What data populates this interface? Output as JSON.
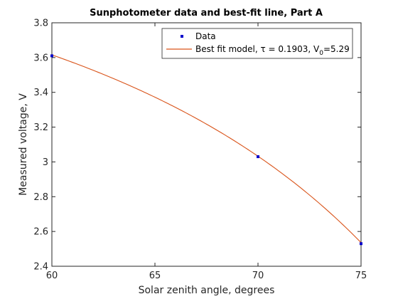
{
  "chart_data": {
    "type": "line",
    "title": "Sunphotometer data and best-fit line, Part A",
    "xlabel": "Solar zenith angle, degrees",
    "ylabel": "Measured voltage, V",
    "xlim": [
      60,
      75
    ],
    "ylim": [
      2.4,
      3.8
    ],
    "xticks": [
      60,
      65,
      70,
      75
    ],
    "yticks": [
      2.4,
      2.6,
      2.8,
      3,
      3.2,
      3.4,
      3.6,
      3.8
    ],
    "xtick_labels": [
      "60",
      "65",
      "70",
      "75"
    ],
    "ytick_labels": [
      "2.4",
      "2.6",
      "2.8",
      "3",
      "3.2",
      "3.4",
      "3.6",
      "3.8"
    ],
    "grid": false,
    "legend_position": "top-right",
    "series": [
      {
        "name": "Data",
        "kind": "scatter",
        "color": "#0000cc",
        "x": [
          60,
          70,
          75
        ],
        "y": [
          3.61,
          3.03,
          2.53
        ]
      },
      {
        "name": "Best fit model, τ = 0.1903, V",
        "name_subscript": "0",
        "name_suffix": "=5.29",
        "kind": "line",
        "color": "#d95319",
        "model": {
          "tau": 0.1903,
          "V0": 5.29
        }
      }
    ]
  }
}
